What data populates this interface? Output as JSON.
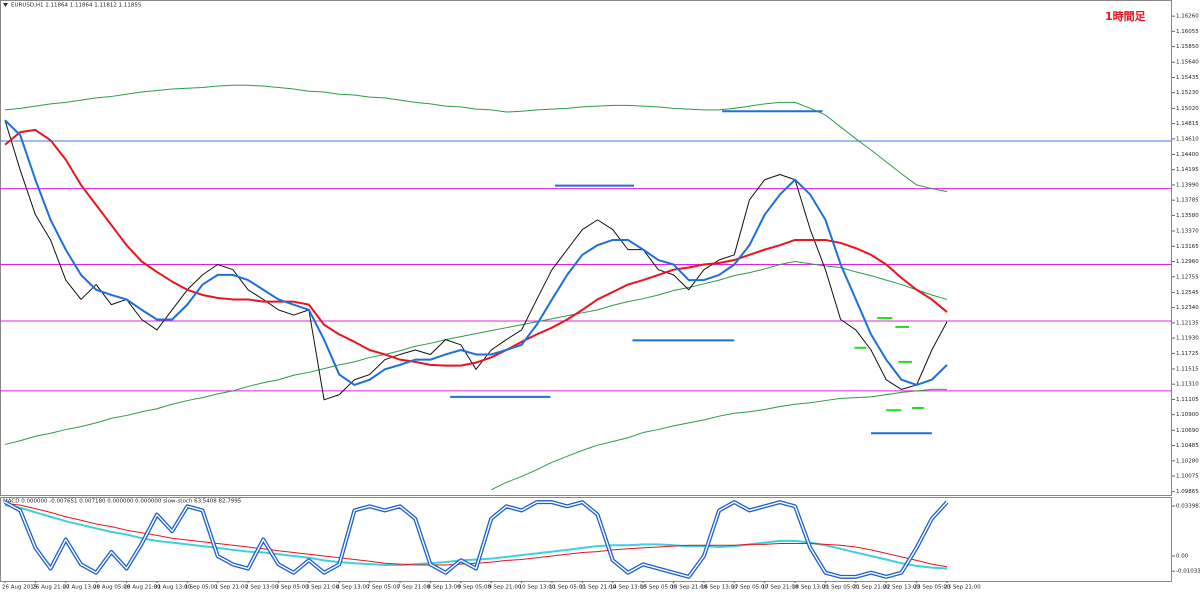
{
  "chart_data": [
    {
      "type": "line",
      "title": "EURUSD,H1  1.11864 1.11864 1.11812 1.11855",
      "annotation": "1時間足",
      "categories": [
        "26 Aug 2015",
        null,
        "26 Aug 21:00",
        null,
        "27 Aug 13:00",
        null,
        "28 Aug 05:00",
        null,
        "28 Aug 21:00",
        null,
        "31 Aug 13:00",
        null,
        "1 Sep 05:00",
        null,
        "1 Sep 21:00",
        null,
        "2 Sep 13:00",
        null,
        "3 Sep 05:00",
        null,
        "3 Sep 21:00",
        null,
        "4 Sep 13:00",
        null,
        "7 Sep 05:00",
        null,
        "7 Sep 21:00",
        null,
        "8 Sep 13:00",
        null,
        "9 Sep 05:00",
        null,
        "9 Sep 21:00",
        null,
        "10 Sep 13:00",
        null,
        "11 Sep 05:00",
        null,
        "11 Sep 21:00",
        null,
        "14 Sep 13:00",
        null,
        "15 Sep 05:00",
        null,
        "15 Sep 21:00",
        null,
        "16 Sep 13:00",
        null,
        "17 Sep 05:00",
        null,
        "17 Sep 21:00",
        null,
        "18 Sep 13:00",
        null,
        "21 Sep 05:00",
        null,
        "21 Sep 21:00",
        null,
        "22 Sep 13:00",
        null,
        "23 Sep 05:00",
        null,
        "23 Sep 21:00"
      ],
      "ylim": [
        1.0982,
        1.1645
      ],
      "yticks": [
        {
          "value": 1.1626,
          "label": "1.16260"
        },
        1.16055,
        {
          "value": 1.1585,
          "label": "1.15850"
        },
        {
          "value": 1.1564,
          "label": "1.15640"
        },
        1.15435,
        {
          "value": 1.1523,
          "label": "1.15230"
        },
        {
          "value": 1.1502,
          "label": "1.15020"
        },
        1.14815,
        {
          "value": 1.1461,
          "label": "1.14610"
        },
        {
          "value": 1.144,
          "label": "1.14400"
        },
        1.14195,
        {
          "value": 1.1399,
          "label": "1.13990"
        },
        1.13785,
        {
          "value": 1.1358,
          "label": "1.13580"
        },
        {
          "value": 1.1337,
          "label": "1.13370"
        },
        1.13165,
        {
          "value": 1.1296,
          "label": "1.12960"
        },
        1.12755,
        1.12545,
        {
          "value": 1.1234,
          "label": "1.12340"
        },
        1.12135,
        {
          "value": 1.1193,
          "label": "1.11930"
        },
        1.11725,
        1.11515,
        {
          "value": 1.1131,
          "label": "1.11310"
        },
        1.11105,
        {
          "value": 1.109,
          "label": "1.10900"
        },
        {
          "value": 1.1069,
          "label": "1.10690"
        },
        1.10485,
        {
          "value": 1.1028,
          "label": "1.10280"
        },
        1.10075,
        1.09865
      ],
      "series": [
        {
          "color": "#2e9a48",
          "values": [
            1.15,
            1.1502,
            1.1505,
            1.1508,
            1.151,
            1.1513,
            1.1516,
            1.1518,
            1.1521,
            1.1524,
            1.1526,
            1.1528,
            1.1529,
            1.153,
            1.1532,
            1.1533,
            1.1533,
            1.1532,
            1.153,
            1.1528,
            1.1525,
            1.1524,
            1.1521,
            1.152,
            1.1517,
            1.1516,
            1.1513,
            1.151,
            1.1508,
            1.1505,
            1.1504,
            1.1501,
            1.15,
            1.1497,
            1.1498,
            1.15,
            1.1501,
            1.1502,
            1.1504,
            1.1505,
            1.1506,
            1.1506,
            1.1505,
            1.1504,
            1.1502,
            1.1501,
            1.15,
            1.15,
            1.1502,
            1.1505,
            1.1508,
            1.151,
            1.151,
            1.1502,
            1.1493,
            1.1477,
            1.1461,
            1.1446,
            1.143,
            1.1414,
            1.1399,
            1.1394,
            1.139
          ]
        },
        {
          "color": "#2e9a48",
          "values": [
            1.105,
            1.1055,
            1.1061,
            1.1065,
            1.107,
            1.1074,
            1.1079,
            1.1085,
            1.1089,
            1.1094,
            1.1098,
            1.1104,
            1.1109,
            1.1113,
            1.1118,
            1.1122,
            1.1128,
            1.1133,
            1.1137,
            1.1143,
            1.1147,
            1.1152,
            1.1157,
            1.1161,
            1.1167,
            1.1171,
            1.1176,
            1.1182,
            1.1186,
            1.1191,
            1.1195,
            1.1199,
            1.1203,
            1.1207,
            1.1211,
            1.1215,
            1.1219,
            1.1223,
            1.1227,
            1.1231,
            1.1237,
            1.1242,
            1.1246,
            1.1251,
            1.1257,
            1.1261,
            1.1266,
            1.1271,
            1.1277,
            1.1281,
            1.1286,
            1.1292,
            1.1296,
            1.1293,
            1.129,
            1.1288,
            1.1282,
            1.1277,
            1.1271,
            1.1265,
            1.1258,
            1.1251,
            1.1245
          ]
        },
        {
          "color": "#2e9a48",
          "values": [
            null,
            null,
            null,
            null,
            null,
            null,
            null,
            null,
            null,
            null,
            null,
            null,
            null,
            null,
            null,
            null,
            null,
            null,
            null,
            null,
            null,
            null,
            null,
            null,
            null,
            null,
            null,
            null,
            null,
            null,
            null,
            null,
            1.0989,
            1.0999,
            1.1007,
            1.1016,
            1.1026,
            1.1034,
            1.1042,
            1.1049,
            1.1054,
            1.1059,
            1.1066,
            1.107,
            1.1075,
            1.1079,
            1.1083,
            1.1088,
            1.1092,
            1.1094,
            1.1097,
            1.1101,
            1.1104,
            1.1106,
            1.1109,
            1.1112,
            1.1113,
            1.1114,
            1.1117,
            1.112,
            1.1122,
            1.1124,
            1.1124
          ]
        },
        {
          "color": "#111111",
          "width": 1,
          "values": [
            1.1486,
            1.1419,
            1.1359,
            1.1325,
            1.1271,
            1.1245,
            1.1265,
            1.1238,
            1.1245,
            1.1218,
            1.1204,
            1.1231,
            1.1258,
            1.1278,
            1.1292,
            1.1285,
            1.1258,
            1.1245,
            1.1231,
            1.1224,
            1.1231,
            1.111,
            1.1117,
            1.1137,
            1.1144,
            1.1164,
            1.1171,
            1.1177,
            1.1171,
            1.1191,
            1.1184,
            1.1151,
            1.1177,
            1.1191,
            1.1204,
            1.1245,
            1.1285,
            1.1312,
            1.1339,
            1.1352,
            1.1339,
            1.1312,
            1.1312,
            1.1285,
            1.1278,
            1.1258,
            1.1285,
            1.1298,
            1.1305,
            1.1379,
            1.1406,
            1.1413,
            1.1406,
            1.1339,
            1.1285,
            1.1218,
            1.1204,
            1.1177,
            1.1137,
            1.1124,
            1.113,
            1.1177,
            1.1215
          ]
        },
        {
          "color": "#e8141e",
          "width": 2,
          "values": [
            1.1453,
            1.147,
            1.1473,
            1.1459,
            1.1433,
            1.1399,
            1.1372,
            1.1345,
            1.1318,
            1.1296,
            1.1282,
            1.1269,
            1.1258,
            1.1251,
            1.1247,
            1.1245,
            1.1245,
            1.1242,
            1.1242,
            1.1242,
            1.1238,
            1.1211,
            1.1198,
            1.1188,
            1.1177,
            1.1171,
            1.1164,
            1.1161,
            1.1157,
            1.1156,
            1.1156,
            1.116,
            1.1167,
            1.1177,
            1.1188,
            1.1198,
            1.1207,
            1.1218,
            1.1231,
            1.1245,
            1.1255,
            1.1265,
            1.1271,
            1.1278,
            1.1285,
            1.1288,
            1.1292,
            1.1294,
            1.1298,
            1.1305,
            1.1312,
            1.1318,
            1.1325,
            1.1325,
            1.1325,
            1.1321,
            1.1314,
            1.1305,
            1.1292,
            1.1274,
            1.1258,
            1.1245,
            1.1228
          ]
        },
        {
          "color": "#1e6fd9",
          "width": 2,
          "values": [
            1.1486,
            1.1466,
            1.1406,
            1.1352,
            1.1312,
            1.1278,
            1.1258,
            1.1251,
            1.1245,
            1.1231,
            1.1218,
            1.1218,
            1.1238,
            1.1265,
            1.1278,
            1.1278,
            1.1271,
            1.1258,
            1.1245,
            1.1238,
            1.1231,
            1.1191,
            1.1144,
            1.113,
            1.1137,
            1.1151,
            1.1157,
            1.1164,
            1.1164,
            1.1171,
            1.1177,
            1.1171,
            1.1171,
            1.1177,
            1.1184,
            1.1211,
            1.1245,
            1.1278,
            1.1305,
            1.1318,
            1.1325,
            1.1325,
            1.1312,
            1.1298,
            1.1292,
            1.1271,
            1.1271,
            1.1278,
            1.1292,
            1.1318,
            1.1359,
            1.1386,
            1.1406,
            1.1386,
            1.1352,
            1.1292,
            1.1245,
            1.1198,
            1.1164,
            1.1137,
            1.113,
            1.1137,
            1.1157
          ]
        }
      ],
      "hlines": [
        {
          "value": 1.1458,
          "color": "#3a7be0"
        },
        {
          "value": 1.1394,
          "color": "#e020e0"
        },
        {
          "value": 1.1292,
          "color": "#e020e0"
        },
        {
          "value": 1.1216,
          "color": "#e020e0"
        },
        {
          "value": 1.1122,
          "color": "#e020e0"
        }
      ],
      "segments": [
        {
          "value": 1.1498,
          "x": [
            47.2,
            53.8
          ],
          "color": "#1e6fd9"
        },
        {
          "value": 1.1398,
          "x": [
            36.2,
            41.4
          ],
          "color": "#1e6fd9"
        },
        {
          "value": 1.119,
          "x": [
            41.3,
            48.0
          ],
          "color": "#1e6fd9"
        },
        {
          "value": 1.1114,
          "x": [
            29.3,
            35.9
          ],
          "color": "#1e6fd9"
        },
        {
          "value": 1.1065,
          "x": [
            57.0,
            61.0
          ],
          "color": "#1e6fd9"
        },
        {
          "value": 1.122,
          "x": [
            57.4,
            58.4
          ],
          "color": "#22dd22"
        },
        {
          "value": 1.1208,
          "x": [
            58.6,
            59.5
          ],
          "color": "#22dd22"
        },
        {
          "value": 1.118,
          "x": [
            55.9,
            56.7
          ],
          "color": "#22dd22"
        },
        {
          "value": 1.1161,
          "x": [
            58.8,
            59.7
          ],
          "color": "#22dd22"
        },
        {
          "value": 1.1099,
          "x": [
            59.7,
            60.5
          ],
          "color": "#22dd22"
        },
        {
          "value": 1.1096,
          "x": [
            58.0,
            59.0
          ],
          "color": "#22dd22"
        }
      ]
    },
    {
      "type": "line",
      "title": "MACD 0.000000 -0.007651 0.007180 0.000000 0.000000 slow-stoch 63.5408 82.7995",
      "ylim": [
        -0.017,
        0.03945
      ],
      "yticks": [
        0.033983,
        {
          "value": 0,
          "label": "0.00"
        },
        -0.01033
      ],
      "y2lim": [
        0,
        100
      ],
      "series": [
        {
          "color": "#3fd0e0",
          "width": 2,
          "values": [
            0.0346,
            0.0328,
            0.0297,
            0.0267,
            0.0237,
            0.0212,
            0.0188,
            0.0164,
            0.0146,
            0.0121,
            0.0103,
            0.0091,
            0.0079,
            0.0067,
            0.0055,
            0.0042,
            0.003,
            0.0024,
            0.0012,
            0,
            -0.0012,
            -0.003,
            -0.0042,
            -0.0049,
            -0.0055,
            -0.0061,
            -0.0061,
            -0.0055,
            -0.0049,
            -0.0042,
            -0.003,
            -0.0024,
            -0.0018,
            -0.0006,
            0.0006,
            0.0018,
            0.003,
            0.0042,
            0.0055,
            0.0067,
            0.0073,
            0.0073,
            0.0079,
            0.0079,
            0.0073,
            0.0067,
            0.0067,
            0.0061,
            0.0067,
            0.0079,
            0.0091,
            0.0103,
            0.0103,
            0.0091,
            0.0073,
            0.0049,
            0.0024,
            0,
            -0.0024,
            -0.0049,
            -0.0067,
            -0.0079,
            -0.0085
          ]
        },
        {
          "color": "#e8141e",
          "width": 1,
          "values": [
            0.0358,
            0.0346,
            0.0322,
            0.0297,
            0.0267,
            0.0243,
            0.0218,
            0.02,
            0.0176,
            0.0158,
            0.014,
            0.0121,
            0.0109,
            0.0097,
            0.0085,
            0.0073,
            0.0061,
            0.0049,
            0.0036,
            0.0024,
            0.0012,
            0,
            -0.0012,
            -0.0024,
            -0.0036,
            -0.0049,
            -0.0055,
            -0.0061,
            -0.0061,
            -0.0061,
            -0.0055,
            -0.0049,
            -0.0042,
            -0.003,
            -0.0024,
            -0.0012,
            0,
            0.0012,
            0.0024,
            0.003,
            0.0042,
            0.0049,
            0.0055,
            0.0061,
            0.0067,
            0.0073,
            0.0073,
            0.0073,
            0.0073,
            0.0079,
            0.0079,
            0.0085,
            0.0085,
            0.0085,
            0.0079,
            0.0073,
            0.0061,
            0.0042,
            0.0018,
            -0.0006,
            -0.003,
            -0.0055,
            -0.0073
          ]
        },
        {
          "color": "#1a5fd0",
          "axis": "y2",
          "style": "double",
          "values": [
            95,
            85,
            40,
            15,
            50,
            20,
            10,
            35,
            15,
            45,
            80,
            60,
            90,
            85,
            30,
            20,
            15,
            50,
            20,
            10,
            25,
            10,
            20,
            85,
            90,
            85,
            90,
            75,
            20,
            10,
            25,
            15,
            75,
            90,
            85,
            95,
            95,
            90,
            95,
            80,
            25,
            10,
            20,
            15,
            10,
            5,
            30,
            85,
            95,
            85,
            90,
            95,
            90,
            40,
            10,
            5,
            5,
            10,
            5,
            10,
            40,
            75,
            95
          ]
        }
      ]
    }
  ]
}
